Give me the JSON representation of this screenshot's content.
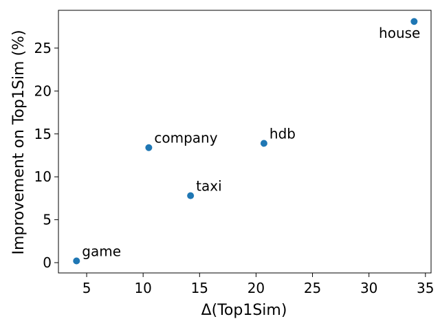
{
  "chart_data": {
    "type": "scatter",
    "title": "",
    "xlabel": "Δ(Top1Sim)",
    "ylabel": "Improvement on Top1Sim (%)",
    "xlim": [
      2.5,
      35.5
    ],
    "ylim": [
      -1.2,
      29.4
    ],
    "xticks": [
      5,
      10,
      15,
      20,
      25,
      30,
      35
    ],
    "yticks": [
      0,
      5,
      10,
      15,
      20,
      25
    ],
    "grid": false,
    "marker_color": "#1f77b4",
    "points": [
      {
        "label": "game",
        "x": 4.1,
        "y": 0.2,
        "label_position": "upper-right"
      },
      {
        "label": "company",
        "x": 10.5,
        "y": 13.4,
        "label_position": "upper-right"
      },
      {
        "label": "taxi",
        "x": 14.2,
        "y": 7.8,
        "label_position": "upper-right"
      },
      {
        "label": "hdb",
        "x": 20.7,
        "y": 13.9,
        "label_position": "upper-right"
      },
      {
        "label": "house",
        "x": 34.0,
        "y": 28.1,
        "label_position": "lower-left"
      }
    ]
  }
}
